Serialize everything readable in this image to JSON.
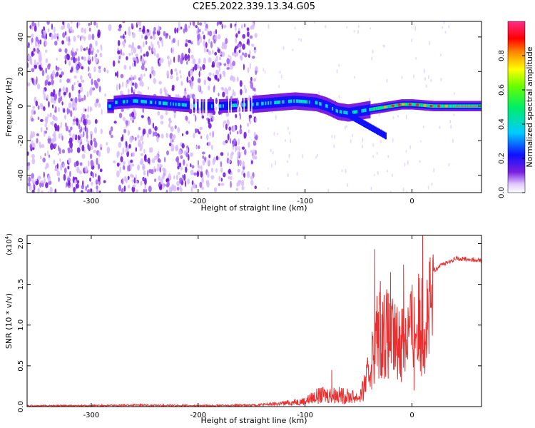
{
  "chart_data": [
    {
      "type": "heatmap",
      "title": "C2E5.2022.339.13.34.G05",
      "xlabel": "Height of straight line (km)",
      "ylabel": "Frequency (Hz)",
      "xlim": [
        -360,
        65
      ],
      "ylim": [
        -50,
        49
      ],
      "xticks": [
        -300,
        -200,
        -100,
        0
      ],
      "yticks": [
        -40,
        -20,
        0,
        20,
        40
      ],
      "colorbar": {
        "label": "Normalized spectral amplitude",
        "range": [
          0.0,
          1.0
        ],
        "ticks": [
          0.0,
          0.2,
          0.4,
          0.6,
          0.8
        ]
      },
      "noise_region": {
        "x_from": -360,
        "x_to": -145,
        "gap_x": [
          -290,
          -275
        ]
      },
      "signal_track": [
        {
          "x": -280,
          "f": 2
        },
        {
          "x": -260,
          "f": 3
        },
        {
          "x": -240,
          "f": 2
        },
        {
          "x": -220,
          "f": 1
        },
        {
          "x": -200,
          "f": 0
        },
        {
          "x": -180,
          "f": 0
        },
        {
          "x": -150,
          "f": 1
        },
        {
          "x": -130,
          "f": 2
        },
        {
          "x": -110,
          "f": 3
        },
        {
          "x": -90,
          "f": 2
        },
        {
          "x": -80,
          "f": 0
        },
        {
          "x": -70,
          "f": -3
        },
        {
          "x": -60,
          "f": -4
        },
        {
          "x": -50,
          "f": -3
        },
        {
          "x": -40,
          "f": -2
        },
        {
          "x": -30,
          "f": -1
        },
        {
          "x": -20,
          "f": 0
        },
        {
          "x": -10,
          "f": 1
        },
        {
          "x": 0,
          "f": 1
        },
        {
          "x": 20,
          "f": 0
        },
        {
          "x": 40,
          "f": 0
        },
        {
          "x": 65,
          "f": 0
        }
      ]
    },
    {
      "type": "line",
      "xlabel": "Height of straight line (km)",
      "ylabel": "SNR (10 * v/v)",
      "y_multiplier": "(x10",
      "y_multiplier_exp": "4",
      "y_multiplier_close": ")",
      "xlim": [
        -360,
        65
      ],
      "ylim": [
        0,
        2.1
      ],
      "xticks": [
        -300,
        -200,
        -100,
        0
      ],
      "yticks": [
        0.0,
        0.5,
        1.0,
        1.5,
        2.0
      ],
      "yticklabels": [
        "0.0",
        "0.5",
        "1.0",
        "1.5",
        "2.0"
      ],
      "series": [
        {
          "color": "#e83030",
          "envelope": [
            {
              "x": -360,
              "y": 0.02
            },
            {
              "x": -300,
              "y": 0.02
            },
            {
              "x": -260,
              "y": 0.03
            },
            {
              "x": -200,
              "y": 0.02
            },
            {
              "x": -150,
              "y": 0.03
            },
            {
              "x": -125,
              "y": 0.06
            },
            {
              "x": -100,
              "y": 0.12
            },
            {
              "x": -90,
              "y": 0.22
            },
            {
              "x": -80,
              "y": 0.25
            },
            {
              "x": -70,
              "y": 0.25
            },
            {
              "x": -60,
              "y": 0.22
            },
            {
              "x": -50,
              "y": 0.2
            },
            {
              "x": -45,
              "y": 0.35
            },
            {
              "x": -40,
              "y": 0.6
            },
            {
              "x": -35,
              "y": 1.1
            },
            {
              "x": -30,
              "y": 1.4
            },
            {
              "x": -20,
              "y": 1.2
            },
            {
              "x": -15,
              "y": 1.1
            },
            {
              "x": -5,
              "y": 1.3
            },
            {
              "x": 0,
              "y": 1.35
            },
            {
              "x": 10,
              "y": 1.5
            },
            {
              "x": 20,
              "y": 1.7
            },
            {
              "x": 30,
              "y": 1.78
            },
            {
              "x": 40,
              "y": 1.84
            },
            {
              "x": 50,
              "y": 1.84
            },
            {
              "x": 65,
              "y": 1.82
            }
          ],
          "spikes": [
            {
              "x": -35,
              "y": 1.93
            },
            {
              "x": -20,
              "y": 1.65
            },
            {
              "x": -8,
              "y": 1.74
            },
            {
              "x": 10,
              "y": 2.1
            },
            {
              "x": 2,
              "y": 0.2
            },
            {
              "x": -75,
              "y": 0.45
            }
          ]
        }
      ]
    }
  ]
}
